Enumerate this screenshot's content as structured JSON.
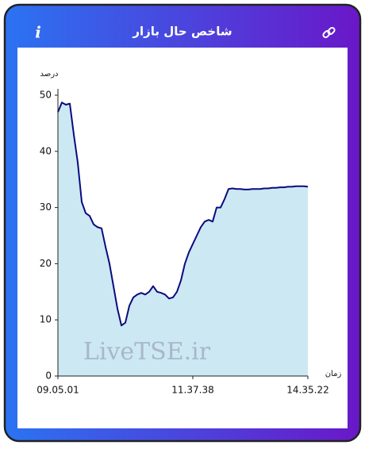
{
  "header": {
    "title": "شاخص حال بازار",
    "info": "i"
  },
  "chart_data": {
    "type": "area",
    "ylabel": "درصد",
    "xlabel": "زمان",
    "annotation": "LiveTSE.ir",
    "color": "#0b0b7e",
    "fill": "#cce8f3",
    "values": [
      47,
      48.7,
      48.3,
      48.5,
      43,
      38,
      31,
      29,
      28.5,
      27,
      26.5,
      26.3,
      23,
      20,
      16,
      12,
      9,
      9.5,
      12.5,
      14,
      14.5,
      14.8,
      14.5,
      15,
      16,
      15,
      14.8,
      14.5,
      13.8,
      14,
      15,
      17,
      20,
      22,
      23.5,
      25,
      26.5,
      27.5,
      27.8,
      27.5,
      30,
      30,
      31.5,
      33.3,
      33.4,
      33.3,
      33.3,
      33.2,
      33.2,
      33.3,
      33.3,
      33.3,
      33.4,
      33.4,
      33.5,
      33.5,
      33.6,
      33.6,
      33.7,
      33.7,
      33.8,
      33.8,
      33.8,
      33.7
    ],
    "xlim": [
      0,
      63
    ],
    "xticks": [
      {
        "value": 0,
        "label": "09.05.01"
      },
      {
        "value": 34,
        "label": "11.37.38"
      },
      {
        "value": 63,
        "label": "14.35.22"
      }
    ],
    "ylim": [
      0,
      50
    ],
    "yticks": [
      0,
      10,
      20,
      30,
      40,
      50
    ],
    "grid": false
  }
}
